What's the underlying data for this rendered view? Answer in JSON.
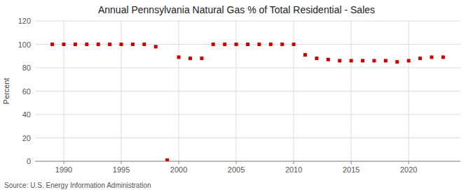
{
  "chart_data": {
    "type": "scatter",
    "title": "Annual Pennsylvania Natural Gas % of Total Residential - Sales",
    "y_label": "Percent",
    "annotations": [
      "Source: U.S. Energy Information Administration"
    ],
    "x": [
      1989,
      1990,
      1991,
      1992,
      1993,
      1994,
      1995,
      1996,
      1997,
      1998,
      1999,
      2000,
      2001,
      2002,
      2003,
      2004,
      2005,
      2006,
      2007,
      2008,
      2009,
      2010,
      2011,
      2012,
      2013,
      2014,
      2015,
      2016,
      2017,
      2018,
      2019,
      2020,
      2021,
      2022,
      2023
    ],
    "values": [
      100,
      100,
      100,
      100,
      100,
      100,
      100,
      100,
      100,
      98,
      1,
      89,
      88,
      88,
      100,
      100,
      100,
      100,
      100,
      100,
      100,
      100,
      91,
      88,
      87,
      86,
      86,
      86,
      86,
      86,
      85,
      86,
      88,
      89,
      89
    ],
    "color": "#cc0000",
    "marker": "square",
    "xlim": [
      1987.5,
      2024.5
    ],
    "ylim": [
      0,
      120
    ],
    "xticks": [
      1990,
      1995,
      2000,
      2005,
      2010,
      2015,
      2020
    ],
    "yticks": [
      0,
      20,
      40,
      60,
      80,
      100,
      120
    ],
    "grid": true
  }
}
